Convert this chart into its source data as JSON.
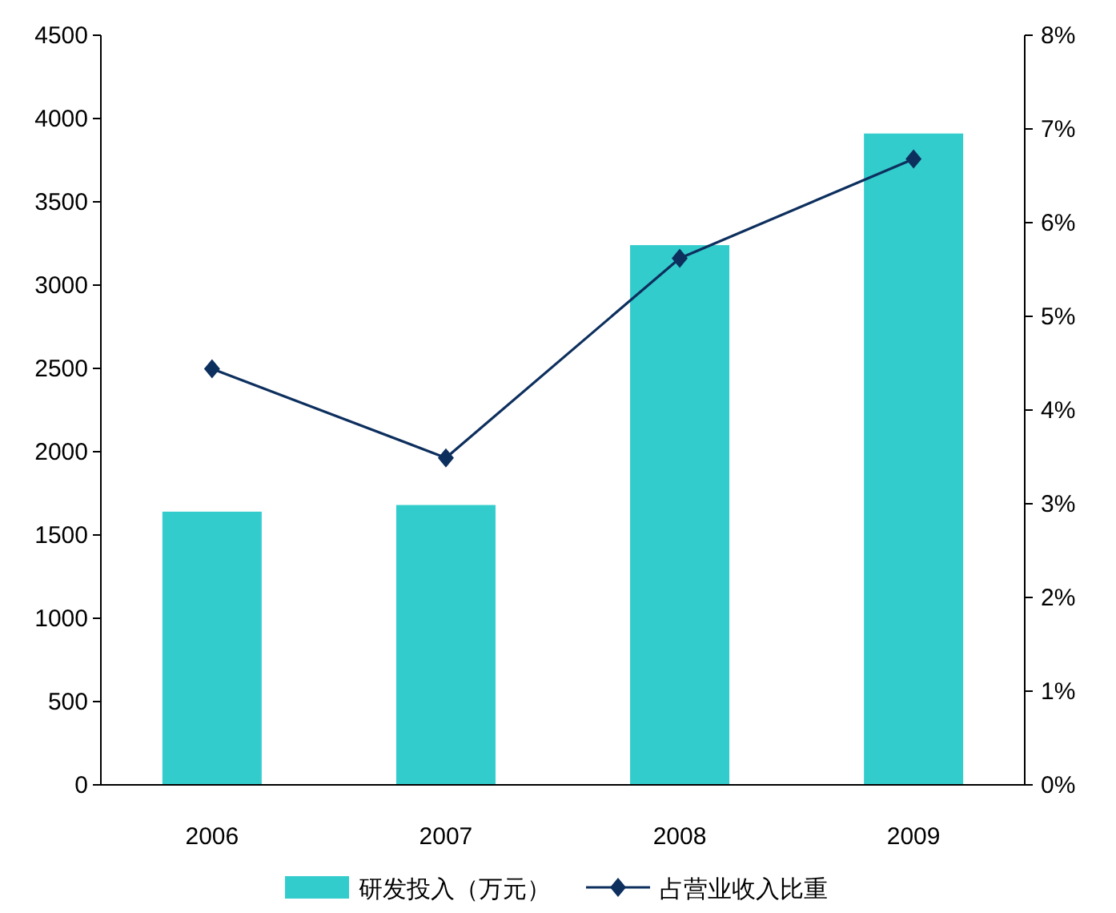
{
  "chart_data": {
    "type": "bar",
    "categories": [
      "2006",
      "2007",
      "2008",
      "2009"
    ],
    "series": [
      {
        "name": "研发投入（万元）",
        "color": "#33cccc",
        "values": [
          1640,
          1680,
          3240,
          3910
        ]
      },
      {
        "name": "占营业收入比重",
        "type": "line",
        "axis": "y2",
        "color": "#0d2f5e",
        "values": [
          4.44,
          3.49,
          5.62,
          6.68
        ]
      }
    ],
    "ylim": [
      0,
      4500
    ],
    "yticks": [
      0,
      500,
      1000,
      1500,
      2000,
      2500,
      3000,
      3500,
      4000,
      4500
    ],
    "y2lim": [
      0,
      8
    ],
    "y2ticks": [
      {
        "value": 0,
        "label": "0%"
      },
      {
        "value": 1,
        "label": "1%"
      },
      {
        "value": 2,
        "label": "2%"
      },
      {
        "value": 3,
        "label": "3%"
      },
      {
        "value": 4,
        "label": "4%"
      },
      {
        "value": 5,
        "label": "5%"
      },
      {
        "value": 6,
        "label": "6%"
      },
      {
        "value": 7,
        "label": "7%"
      },
      {
        "value": 8,
        "label": "8%"
      }
    ],
    "marker": "diamond",
    "line_style": "solid",
    "legend": "bottom",
    "grid": false
  }
}
